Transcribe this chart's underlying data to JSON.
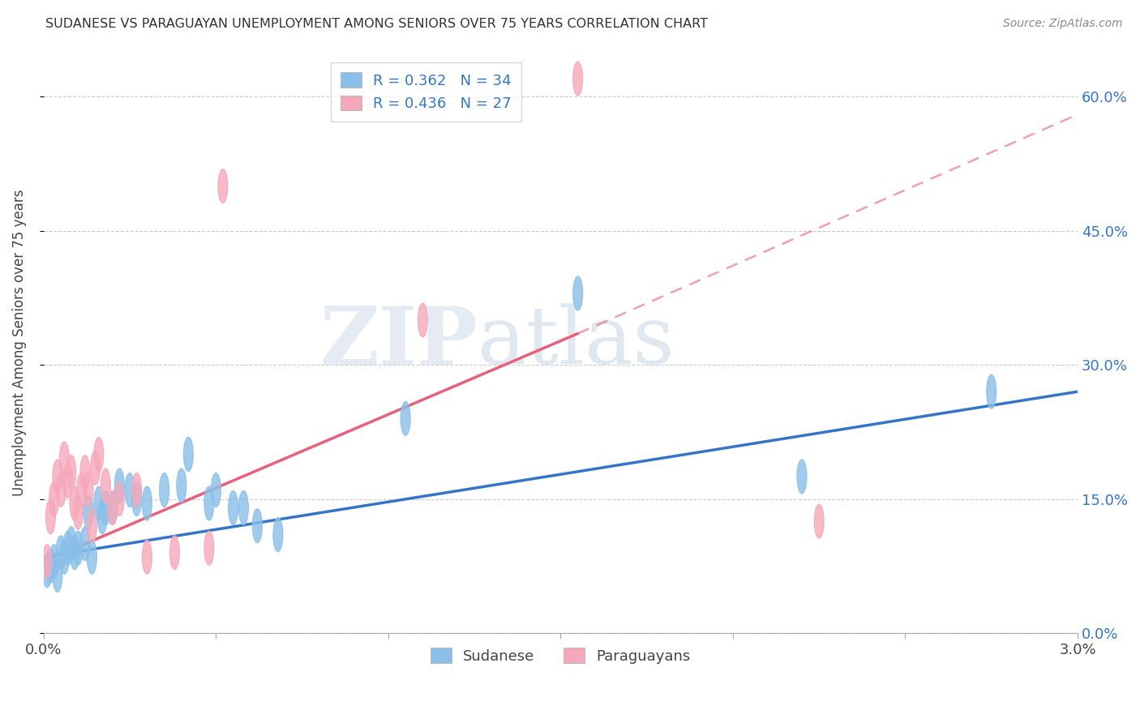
{
  "title": "SUDANESE VS PARAGUAYAN UNEMPLOYMENT AMONG SENIORS OVER 75 YEARS CORRELATION CHART",
  "source": "Source: ZipAtlas.com",
  "ylabel": "Unemployment Among Seniors over 75 years",
  "xlim": [
    0.0,
    3.0
  ],
  "ylim": [
    0.0,
    65.0
  ],
  "yticks": [
    0.0,
    15.0,
    30.0,
    45.0,
    60.0
  ],
  "xticks": [
    0.0,
    0.5,
    1.0,
    1.5,
    2.0,
    2.5,
    3.0
  ],
  "legend_r_blue": "R = 0.362   N = 34",
  "legend_r_pink": "R = 0.436   N = 27",
  "sudanese_color": "#89bfe8",
  "paraguayan_color": "#f5a8bb",
  "sudanese_line_color": "#3575c8",
  "paraguayan_line_color": "#e8607a",
  "right_tick_color": "#3575c8",
  "watermark_zip": "ZIP",
  "watermark_atlas": "atlas",
  "sudanese_x": [
    0.01,
    0.02,
    0.03,
    0.04,
    0.05,
    0.06,
    0.07,
    0.08,
    0.09,
    0.1,
    0.12,
    0.13,
    0.14,
    0.16,
    0.17,
    0.18,
    0.2,
    0.22,
    0.25,
    0.27,
    0.3,
    0.35,
    0.4,
    0.42,
    0.48,
    0.5,
    0.55,
    0.58,
    0.62,
    0.68,
    1.05,
    1.55,
    2.2,
    2.75
  ],
  "sudanese_y": [
    7.0,
    7.5,
    8.0,
    6.5,
    9.0,
    8.5,
    9.5,
    10.0,
    9.0,
    9.5,
    10.0,
    13.5,
    8.5,
    14.5,
    13.0,
    14.0,
    14.0,
    16.5,
    16.0,
    15.0,
    14.5,
    16.0,
    16.5,
    20.0,
    14.5,
    16.0,
    14.0,
    14.0,
    12.0,
    11.0,
    24.0,
    38.0,
    17.5,
    27.0
  ],
  "paraguayan_x": [
    0.01,
    0.02,
    0.03,
    0.04,
    0.05,
    0.06,
    0.07,
    0.08,
    0.09,
    0.1,
    0.11,
    0.12,
    0.13,
    0.14,
    0.15,
    0.16,
    0.18,
    0.2,
    0.22,
    0.27,
    0.3,
    0.38,
    0.48,
    0.52,
    1.1,
    1.55,
    2.25
  ],
  "paraguayan_y": [
    8.0,
    13.0,
    15.0,
    17.5,
    16.0,
    19.5,
    17.0,
    18.0,
    14.5,
    13.5,
    16.0,
    18.0,
    16.0,
    12.0,
    18.5,
    20.0,
    16.5,
    14.0,
    15.0,
    16.0,
    8.5,
    9.0,
    9.5,
    50.0,
    35.0,
    62.0,
    12.5
  ],
  "sudanese_line_x0": 0.0,
  "sudanese_line_y0": 8.5,
  "sudanese_line_x1": 3.0,
  "sudanese_line_y1": 27.0,
  "paraguayan_line_x0": 0.0,
  "paraguayan_line_y0": 8.0,
  "paraguayan_line_x1": 1.55,
  "paraguayan_line_y1": 33.5,
  "paraguayan_dashed_x0": 1.55,
  "paraguayan_dashed_y0": 33.5,
  "paraguayan_dashed_x1": 3.0,
  "paraguayan_dashed_y1": 58.0
}
